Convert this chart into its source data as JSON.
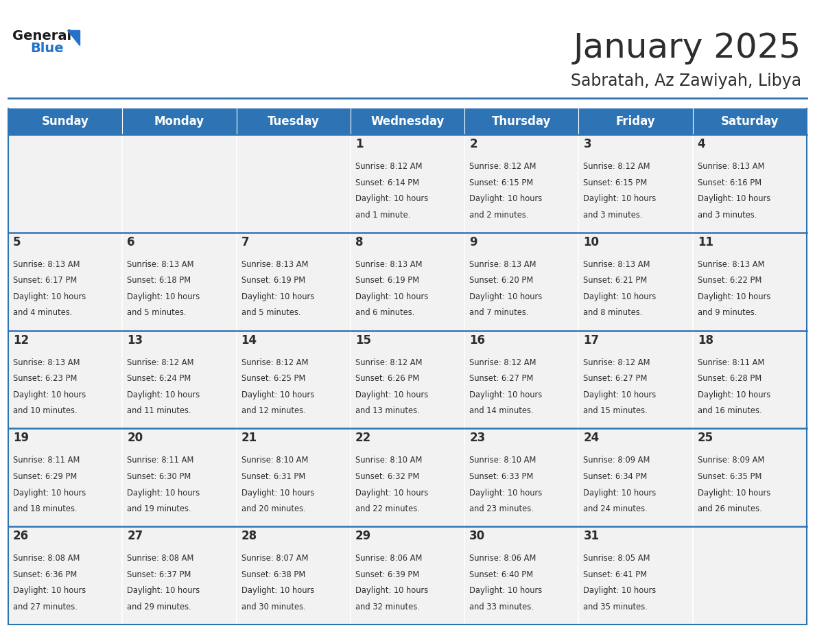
{
  "title": "January 2025",
  "subtitle": "Sabratah, Az Zawiyah, Libya",
  "days_of_week": [
    "Sunday",
    "Monday",
    "Tuesday",
    "Wednesday",
    "Thursday",
    "Friday",
    "Saturday"
  ],
  "header_bg": "#2e74b5",
  "header_text": "#ffffff",
  "cell_bg": "#f2f2f2",
  "border_color": "#2e74b5",
  "title_color": "#2d2d2d",
  "subtitle_color": "#2d2d2d",
  "text_color": "#2d2d2d",
  "calendar_data": [
    [
      null,
      null,
      null,
      {
        "day": 1,
        "sunrise": "8:12 AM",
        "sunset": "6:14 PM",
        "daylight": "10 hours and 1 minute."
      },
      {
        "day": 2,
        "sunrise": "8:12 AM",
        "sunset": "6:15 PM",
        "daylight": "10 hours and 2 minutes."
      },
      {
        "day": 3,
        "sunrise": "8:12 AM",
        "sunset": "6:15 PM",
        "daylight": "10 hours and 3 minutes."
      },
      {
        "day": 4,
        "sunrise": "8:13 AM",
        "sunset": "6:16 PM",
        "daylight": "10 hours and 3 minutes."
      }
    ],
    [
      {
        "day": 5,
        "sunrise": "8:13 AM",
        "sunset": "6:17 PM",
        "daylight": "10 hours and 4 minutes."
      },
      {
        "day": 6,
        "sunrise": "8:13 AM",
        "sunset": "6:18 PM",
        "daylight": "10 hours and 5 minutes."
      },
      {
        "day": 7,
        "sunrise": "8:13 AM",
        "sunset": "6:19 PM",
        "daylight": "10 hours and 5 minutes."
      },
      {
        "day": 8,
        "sunrise": "8:13 AM",
        "sunset": "6:19 PM",
        "daylight": "10 hours and 6 minutes."
      },
      {
        "day": 9,
        "sunrise": "8:13 AM",
        "sunset": "6:20 PM",
        "daylight": "10 hours and 7 minutes."
      },
      {
        "day": 10,
        "sunrise": "8:13 AM",
        "sunset": "6:21 PM",
        "daylight": "10 hours and 8 minutes."
      },
      {
        "day": 11,
        "sunrise": "8:13 AM",
        "sunset": "6:22 PM",
        "daylight": "10 hours and 9 minutes."
      }
    ],
    [
      {
        "day": 12,
        "sunrise": "8:13 AM",
        "sunset": "6:23 PM",
        "daylight": "10 hours and 10 minutes."
      },
      {
        "day": 13,
        "sunrise": "8:12 AM",
        "sunset": "6:24 PM",
        "daylight": "10 hours and 11 minutes."
      },
      {
        "day": 14,
        "sunrise": "8:12 AM",
        "sunset": "6:25 PM",
        "daylight": "10 hours and 12 minutes."
      },
      {
        "day": 15,
        "sunrise": "8:12 AM",
        "sunset": "6:26 PM",
        "daylight": "10 hours and 13 minutes."
      },
      {
        "day": 16,
        "sunrise": "8:12 AM",
        "sunset": "6:27 PM",
        "daylight": "10 hours and 14 minutes."
      },
      {
        "day": 17,
        "sunrise": "8:12 AM",
        "sunset": "6:27 PM",
        "daylight": "10 hours and 15 minutes."
      },
      {
        "day": 18,
        "sunrise": "8:11 AM",
        "sunset": "6:28 PM",
        "daylight": "10 hours and 16 minutes."
      }
    ],
    [
      {
        "day": 19,
        "sunrise": "8:11 AM",
        "sunset": "6:29 PM",
        "daylight": "10 hours and 18 minutes."
      },
      {
        "day": 20,
        "sunrise": "8:11 AM",
        "sunset": "6:30 PM",
        "daylight": "10 hours and 19 minutes."
      },
      {
        "day": 21,
        "sunrise": "8:10 AM",
        "sunset": "6:31 PM",
        "daylight": "10 hours and 20 minutes."
      },
      {
        "day": 22,
        "sunrise": "8:10 AM",
        "sunset": "6:32 PM",
        "daylight": "10 hours and 22 minutes."
      },
      {
        "day": 23,
        "sunrise": "8:10 AM",
        "sunset": "6:33 PM",
        "daylight": "10 hours and 23 minutes."
      },
      {
        "day": 24,
        "sunrise": "8:09 AM",
        "sunset": "6:34 PM",
        "daylight": "10 hours and 24 minutes."
      },
      {
        "day": 25,
        "sunrise": "8:09 AM",
        "sunset": "6:35 PM",
        "daylight": "10 hours and 26 minutes."
      }
    ],
    [
      {
        "day": 26,
        "sunrise": "8:08 AM",
        "sunset": "6:36 PM",
        "daylight": "10 hours and 27 minutes."
      },
      {
        "day": 27,
        "sunrise": "8:08 AM",
        "sunset": "6:37 PM",
        "daylight": "10 hours and 29 minutes."
      },
      {
        "day": 28,
        "sunrise": "8:07 AM",
        "sunset": "6:38 PM",
        "daylight": "10 hours and 30 minutes."
      },
      {
        "day": 29,
        "sunrise": "8:06 AM",
        "sunset": "6:39 PM",
        "daylight": "10 hours and 32 minutes."
      },
      {
        "day": 30,
        "sunrise": "8:06 AM",
        "sunset": "6:40 PM",
        "daylight": "10 hours and 33 minutes."
      },
      {
        "day": 31,
        "sunrise": "8:05 AM",
        "sunset": "6:41 PM",
        "daylight": "10 hours and 35 minutes."
      },
      null
    ]
  ]
}
